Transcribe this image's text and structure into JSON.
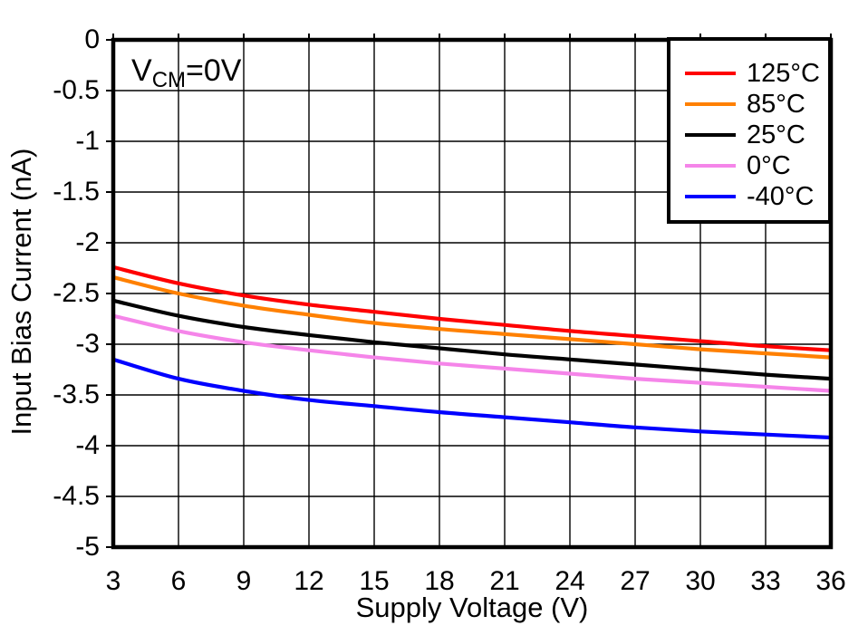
{
  "figure": {
    "background": "#FFFFFF",
    "annotation": {
      "main": "V",
      "sub": "CM",
      "rest": "=0V"
    }
  },
  "chart_data": {
    "type": "line",
    "title": "",
    "xlabel": "Supply Voltage (V)",
    "ylabel": "Input Bias Current (nA)",
    "x": [
      3,
      6,
      9,
      12,
      15,
      18,
      21,
      24,
      27,
      30,
      33,
      36
    ],
    "xlim": [
      3,
      36
    ],
    "xtick_step": 3,
    "ylim": [
      -5,
      0
    ],
    "ytick_step": 0.5,
    "grid": true,
    "legend_position": "top-right",
    "axis_color": "#000000",
    "gridline_color": "#000000",
    "series": [
      {
        "name": "125°C",
        "color": "#FF0000",
        "values": [
          -2.24,
          -2.4,
          -2.52,
          -2.61,
          -2.68,
          -2.75,
          -2.81,
          -2.87,
          -2.92,
          -2.97,
          -3.02,
          -3.06
        ]
      },
      {
        "name": "85°C",
        "color": "#FF8000",
        "values": [
          -2.34,
          -2.5,
          -2.62,
          -2.71,
          -2.79,
          -2.85,
          -2.9,
          -2.95,
          -3.0,
          -3.05,
          -3.09,
          -3.13
        ]
      },
      {
        "name": "25°C",
        "color": "#000000",
        "values": [
          -2.57,
          -2.72,
          -2.83,
          -2.91,
          -2.98,
          -3.04,
          -3.1,
          -3.15,
          -3.2,
          -3.25,
          -3.3,
          -3.34
        ]
      },
      {
        "name": "0°C",
        "color": "#F585E9",
        "values": [
          -2.72,
          -2.87,
          -2.98,
          -3.06,
          -3.13,
          -3.19,
          -3.24,
          -3.29,
          -3.34,
          -3.38,
          -3.42,
          -3.46
        ]
      },
      {
        "name": "-40°C",
        "color": "#0000FF",
        "values": [
          -3.15,
          -3.34,
          -3.46,
          -3.55,
          -3.61,
          -3.67,
          -3.72,
          -3.77,
          -3.82,
          -3.86,
          -3.89,
          -3.92
        ]
      }
    ]
  }
}
